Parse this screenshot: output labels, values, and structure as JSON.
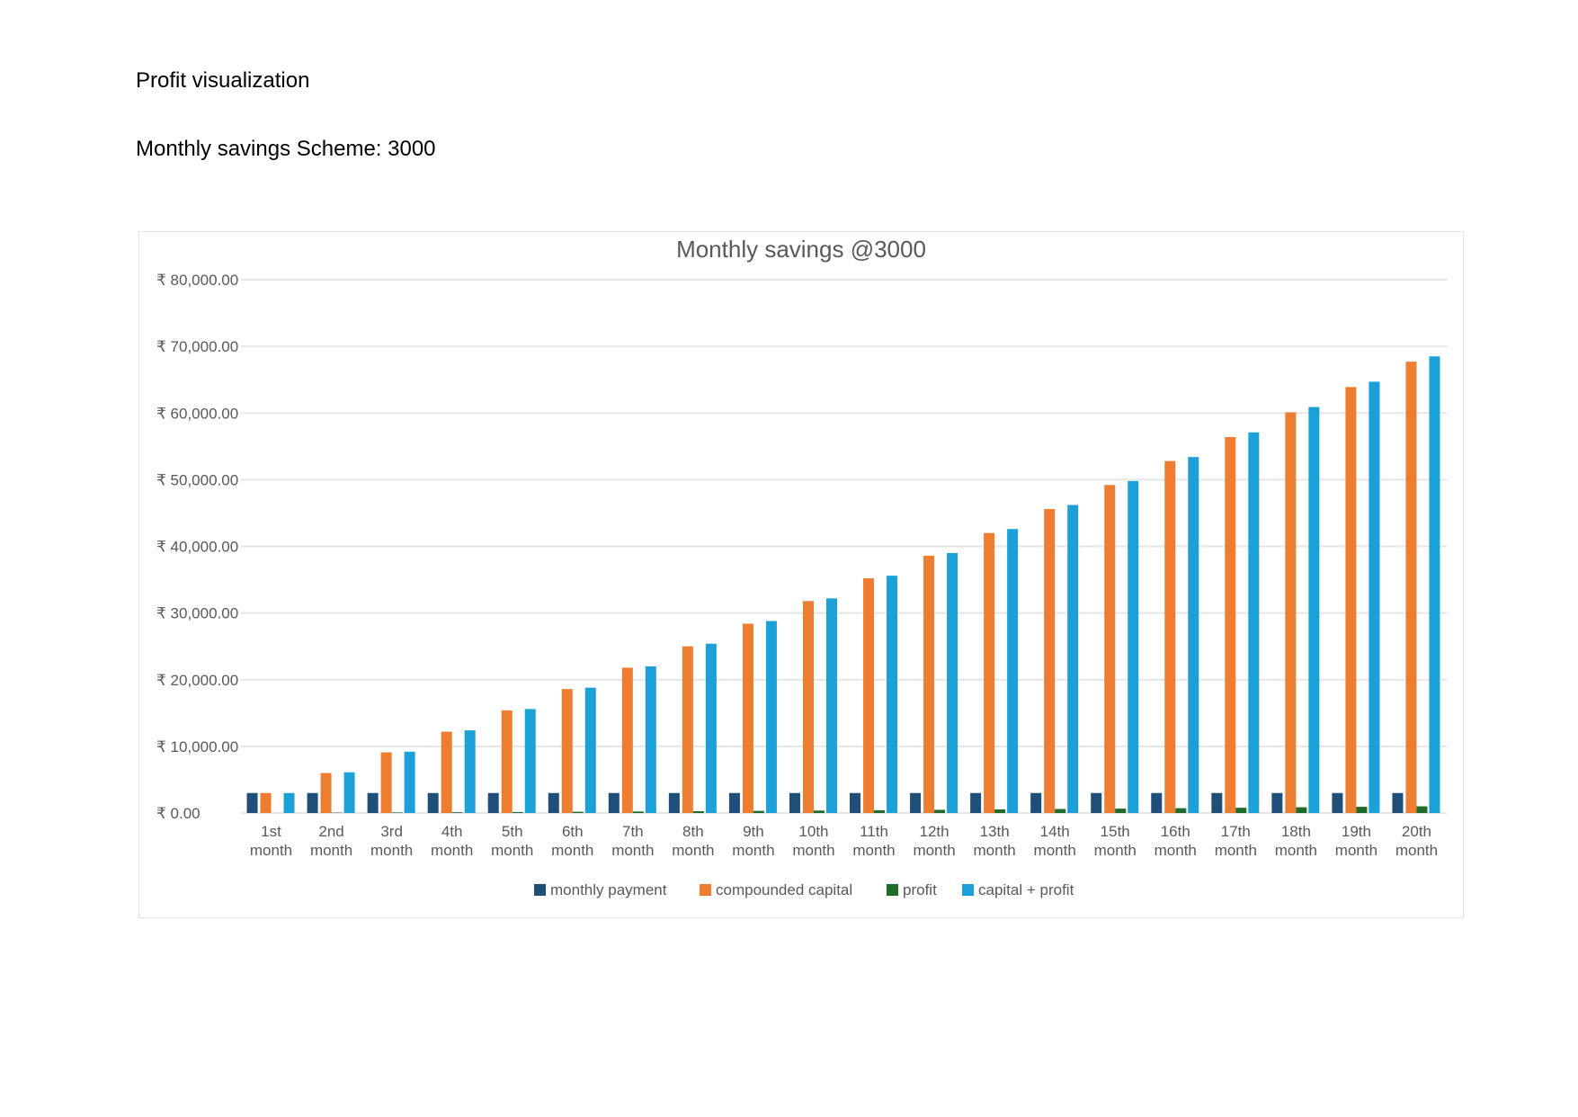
{
  "document": {
    "title": "Profit visualization",
    "subtitle": "Monthly savings Scheme: 3000"
  },
  "colors": {
    "monthly_payment": "#1f4e79",
    "compounded_capital": "#ed7d31",
    "profit": "#1e6b2a",
    "capital_profit": "#1ba1d8",
    "grid": "#e6e6e6",
    "axis_text": "#595959",
    "title_text": "#595959"
  },
  "chart_data": {
    "type": "bar",
    "title": "Monthly savings @3000",
    "xlabel": "",
    "ylabel": "",
    "ylim": [
      0,
      80000
    ],
    "y_ticks": [
      {
        "value": 80000,
        "label": "₹ 80,000.00"
      },
      {
        "value": 70000,
        "label": "₹ 70,000.00"
      },
      {
        "value": 60000,
        "label": "₹ 60,000.00"
      },
      {
        "value": 50000,
        "label": "₹ 50,000.00"
      },
      {
        "value": 40000,
        "label": "₹ 40,000.00"
      },
      {
        "value": 30000,
        "label": "₹ 30,000.00"
      },
      {
        "value": 20000,
        "label": "₹ 20,000.00"
      },
      {
        "value": 10000,
        "label": "₹ 10,000.00"
      },
      {
        "value": 0,
        "label": "₹ 0.00"
      }
    ],
    "categories": [
      [
        "1st",
        "month"
      ],
      [
        "2nd",
        "month"
      ],
      [
        "3rd",
        "month"
      ],
      [
        "4th",
        "month"
      ],
      [
        "5th",
        "month"
      ],
      [
        "6th",
        "month"
      ],
      [
        "7th",
        "month"
      ],
      [
        "8th",
        "month"
      ],
      [
        "9th",
        "month"
      ],
      [
        "10th",
        "month"
      ],
      [
        "11th",
        "month"
      ],
      [
        "12th",
        "month"
      ],
      [
        "13th",
        "month"
      ],
      [
        "14th",
        "month"
      ],
      [
        "15th",
        "month"
      ],
      [
        "16th",
        "month"
      ],
      [
        "17th",
        "month"
      ],
      [
        "18th",
        "month"
      ],
      [
        "19th",
        "month"
      ],
      [
        "20th",
        "month"
      ]
    ],
    "grid": true,
    "legend_position": "bottom",
    "series": [
      {
        "name": "monthly payment",
        "color_key": "monthly_payment",
        "values": [
          3000,
          3000,
          3000,
          3000,
          3000,
          3000,
          3000,
          3000,
          3000,
          3000,
          3000,
          3000,
          3000,
          3000,
          3000,
          3000,
          3000,
          3000,
          3000,
          3000
        ]
      },
      {
        "name": "compounded capital",
        "color_key": "compounded_capital",
        "values": [
          3000,
          6000,
          9100,
          12200,
          15400,
          18600,
          21800,
          25000,
          28400,
          31800,
          35200,
          38600,
          42000,
          45600,
          49200,
          52800,
          56400,
          60100,
          63900,
          67700
        ]
      },
      {
        "name": "profit",
        "color_key": "profit",
        "values": [
          0,
          50,
          80,
          110,
          150,
          190,
          230,
          270,
          320,
          370,
          420,
          480,
          540,
          600,
          660,
          720,
          790,
          860,
          930,
          1000
        ]
      },
      {
        "name": "capital + profit",
        "color_key": "capital_profit",
        "values": [
          3000,
          6100,
          9200,
          12400,
          15600,
          18800,
          22000,
          25400,
          28800,
          32200,
          35600,
          39000,
          42600,
          46200,
          49800,
          53400,
          57100,
          60900,
          64700,
          68500
        ]
      }
    ]
  }
}
